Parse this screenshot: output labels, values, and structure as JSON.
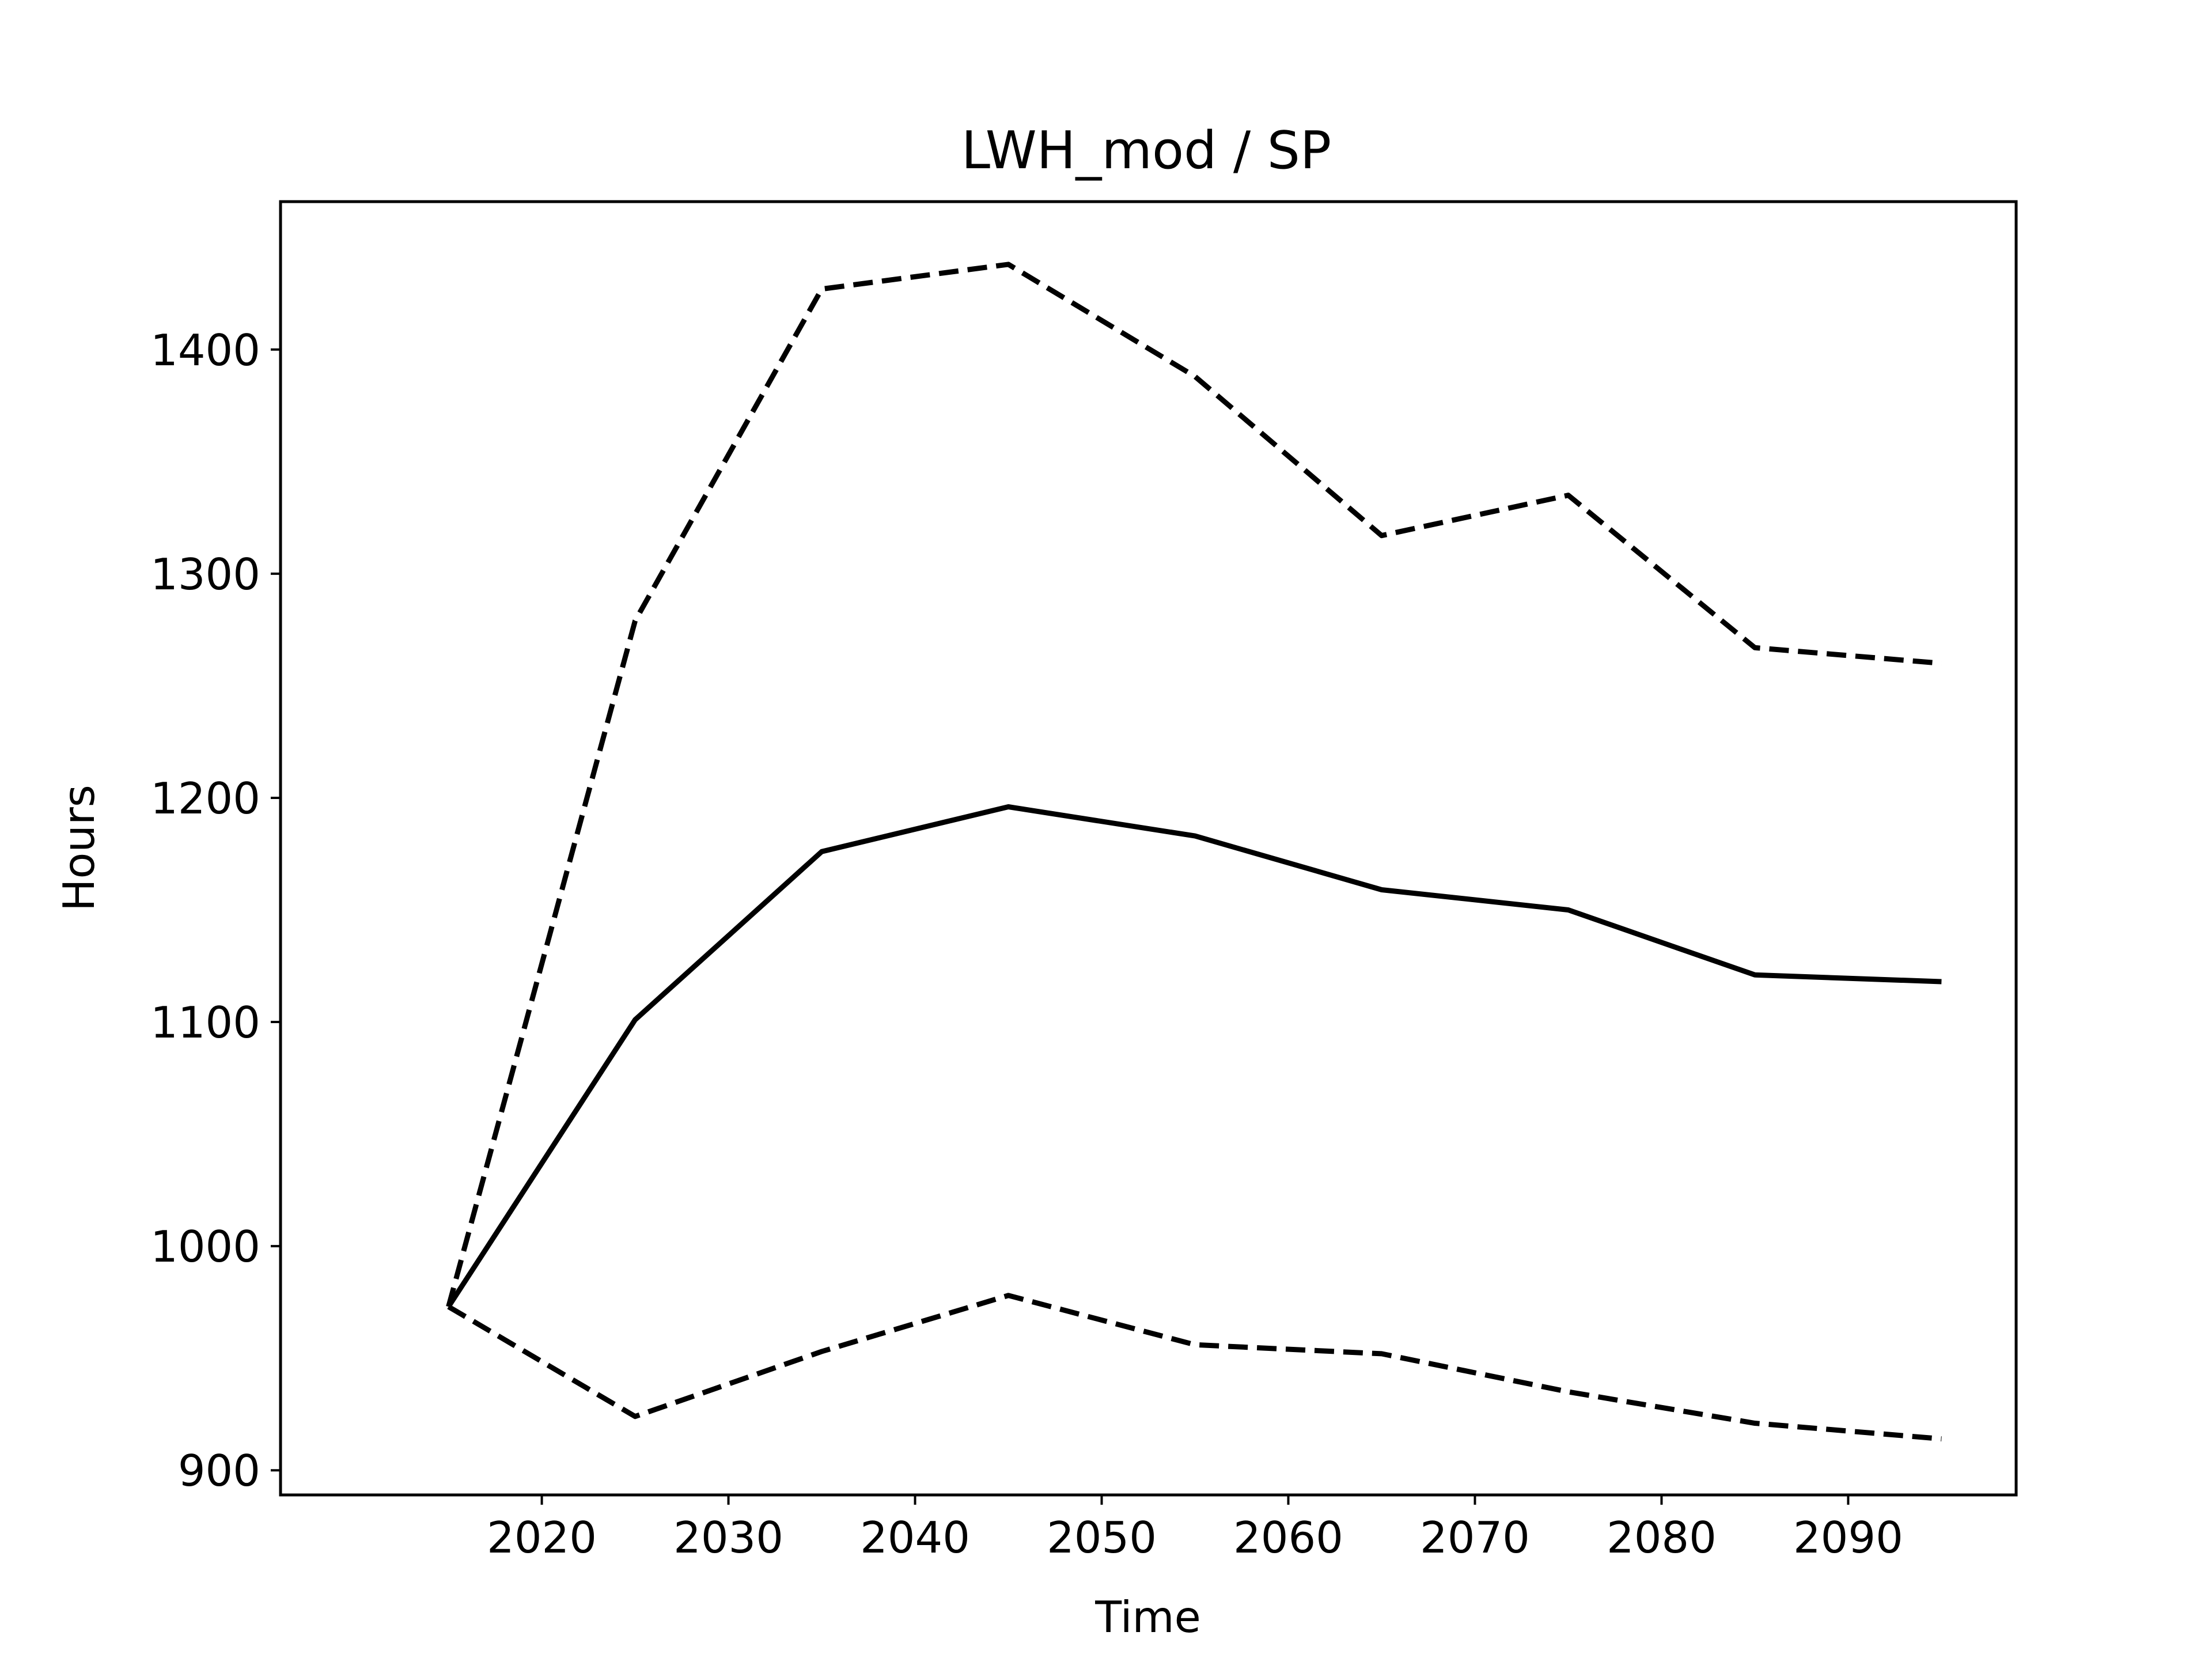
{
  "chart_data": {
    "type": "line",
    "title": "LWH_mod / SP",
    "xlabel": "Time",
    "ylabel": "Hours",
    "x": [
      2015,
      2025,
      2035,
      2045,
      2055,
      2065,
      2075,
      2085,
      2095
    ],
    "xlim": [
      2006,
      2099
    ],
    "ylim": [
      889,
      1466
    ],
    "xticks": [
      2020,
      2030,
      2040,
      2050,
      2060,
      2070,
      2080,
      2090
    ],
    "yticks": [
      900,
      1000,
      1100,
      1200,
      1300,
      1400
    ],
    "grid": false,
    "series": [
      {
        "style": "solid",
        "color": "#000000",
        "values": [
          973,
          1101,
          1176,
          1196,
          1183,
          1159,
          1150,
          1121,
          1118
        ]
      },
      {
        "style": "dashed",
        "color": "#000000",
        "values": [
          973,
          1279,
          1427,
          1438,
          1388,
          1317,
          1335,
          1267,
          1260
        ]
      },
      {
        "style": "dashed",
        "color": "#000000",
        "values": [
          973,
          924,
          953,
          978,
          956,
          952,
          935,
          921,
          914
        ]
      }
    ]
  }
}
